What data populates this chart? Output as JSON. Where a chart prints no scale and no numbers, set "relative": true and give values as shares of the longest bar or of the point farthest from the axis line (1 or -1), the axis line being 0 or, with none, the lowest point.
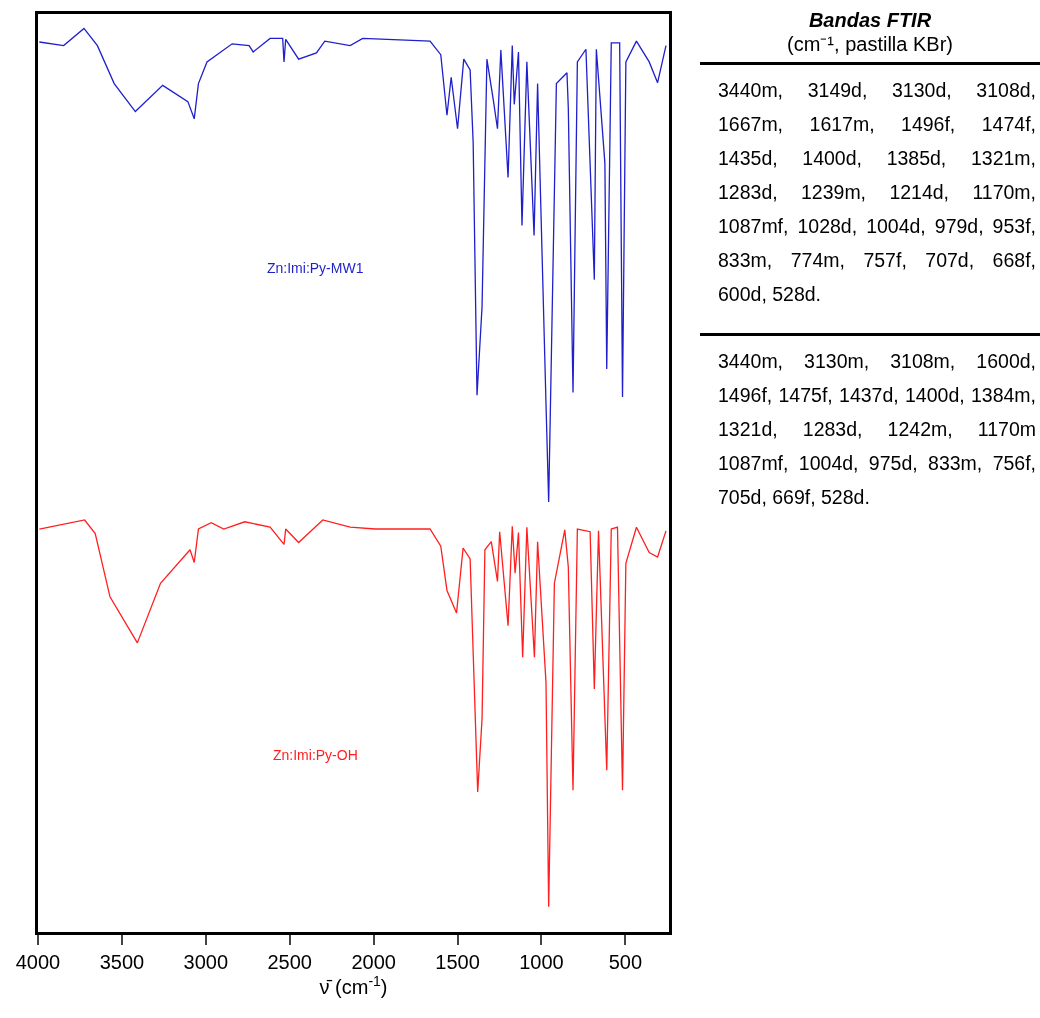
{
  "chart_data": {
    "type": "line",
    "relative": true,
    "title": "Bandas FTIR",
    "subtitle": "(cm⁻¹, pastilla KBr)",
    "xlabel": "ν̄ (cm$^{-1}$)",
    "xlim": [
      4000,
      240
    ],
    "xticks": [
      4000,
      3500,
      3000,
      2500,
      2000,
      1500,
      1000,
      500
    ],
    "grid": false,
    "legend": false,
    "marker": "none",
    "line_style": "solid",
    "x": [
      3992,
      3847,
      3726,
      3646,
      3546,
      3420,
      3257,
      3107,
      3069,
      3044,
      2993,
      2843,
      2742,
      2718,
      2617,
      2542,
      2534,
      2524,
      2447,
      2341,
      2291,
      2140,
      2065,
      1664,
      1600,
      1563,
      1538,
      1500,
      1463,
      1425,
      1407,
      1384,
      1354,
      1325,
      1287,
      1262,
      1242,
      1199,
      1174,
      1162,
      1137,
      1116,
      1087,
      1044,
      1023,
      973,
      957,
      911,
      848,
      840,
      812,
      786,
      735,
      685,
      673,
      622,
      611,
      584,
      534,
      517,
      497,
      434,
      358,
      308,
      258
    ],
    "series": [
      {
        "name": "Zn:Imi:Py-MW1",
        "color": "#1f1fcc",
        "values": [
          0.985,
          0.981,
          1,
          0.981,
          0.939,
          0.908,
          0.937,
          0.919,
          0.9,
          0.939,
          0.963,
          0.983,
          0.981,
          0.974,
          0.989,
          0.989,
          0.963,
          0.988,
          0.966,
          0.973,
          0.986,
          0.981,
          0.989,
          0.986,
          0.971,
          0.904,
          0.946,
          0.889,
          0.966,
          0.954,
          0.874,
          0.594,
          0.692,
          0.966,
          0.921,
          0.889,
          0.976,
          0.835,
          0.981,
          0.916,
          0.974,
          0.782,
          0.963,
          0.771,
          0.939,
          0.585,
          0.476,
          0.939,
          0.951,
          0.912,
          0.597,
          0.963,
          0.977,
          0.722,
          0.977,
          0.851,
          0.623,
          0.984,
          0.984,
          0.592,
          0.963,
          0.986,
          0.963,
          0.94,
          0.981
        ]
      },
      {
        "name": "Zn:Imi:Py-OH",
        "color": "#ff1f1f",
        "x": [
          3992,
          3722,
          3659,
          3571,
          3408,
          3270,
          3094,
          3069,
          3044,
          2968,
          2893,
          2768,
          2617,
          2534,
          2524,
          2447,
          2303,
          2140,
          1990,
          1664,
          1600,
          1563,
          1506,
          1467,
          1425,
          1380,
          1354,
          1337,
          1299,
          1262,
          1249,
          1199,
          1174,
          1157,
          1137,
          1112,
          1087,
          1042,
          1023,
          973,
          957,
          923,
          861,
          840,
          812,
          786,
          710,
          685,
          660,
          611,
          584,
          547,
          517,
          497,
          434,
          358,
          308,
          258
        ],
        "values": [
          0.446,
          0.456,
          0.441,
          0.371,
          0.32,
          0.386,
          0.423,
          0.409,
          0.446,
          0.453,
          0.446,
          0.454,
          0.448,
          0.429,
          0.446,
          0.431,
          0.456,
          0.448,
          0.446,
          0.446,
          0.427,
          0.378,
          0.353,
          0.425,
          0.413,
          0.155,
          0.236,
          0.423,
          0.432,
          0.388,
          0.443,
          0.339,
          0.449,
          0.397,
          0.442,
          0.304,
          0.448,
          0.304,
          0.432,
          0.276,
          0.028,
          0.386,
          0.445,
          0.404,
          0.157,
          0.446,
          0.443,
          0.269,
          0.444,
          0.179,
          0.446,
          0.448,
          0.157,
          0.408,
          0.448,
          0.42,
          0.415,
          0.444
        ]
      }
    ],
    "annotations": [
      "3440m, 3149d, 3130d, 3108d, 1667m, 1617m, 1496f, 1474f, 1435d, 1400d, 1385d, 1321m, 1283d, 1239m, 1214d, 1170m, 1087mf, 1028d, 1004d, 979d, 953f, 833m, 774m, 757f, 707d, 668f, 600d, 528d.",
      "3440m, 3130m, 3108m, 1600d, 1496f, 1475f, 1437d, 1400d, 1384m, 1321d, 1283d, 1242m, 1170m 1087mf, 1004d, 975d, 833m, 756f, 705d, 669f, 528d."
    ]
  }
}
